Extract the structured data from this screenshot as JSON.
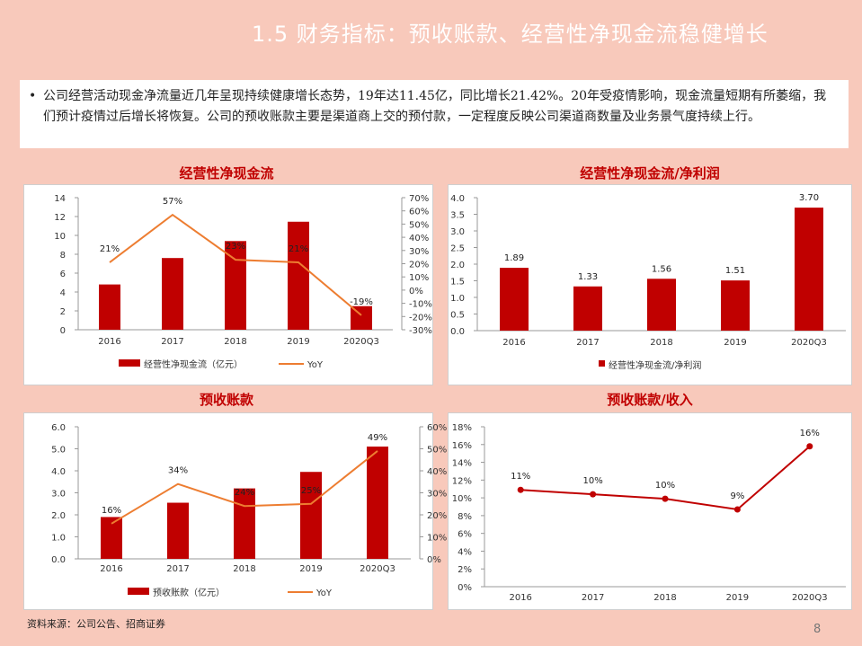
{
  "slide": {
    "title": "1.5 财务指标：预收账款、经营性净现金流稳健增长",
    "bullet_char": "•",
    "summary": "公司经营活动现金净流量近几年呈现持续健康增长态势，19年达11.45亿，同比增长21.42%。20年受疫情影响，现金流量短期有所萎缩，我们预计疫情过后增长将恢复。公司的预收账款主要是渠道商上交的预付款，一定程度反映公司渠道商数量及业务景气度持续上行。",
    "source": "资料来源：公司公告、招商证券",
    "page_number": "8"
  },
  "colors": {
    "bar": "#c00000",
    "line_yoy": "#ed7d31",
    "line_ratio": "#c00000",
    "title_red": "#c00000",
    "background": "#f8c9bb"
  },
  "chart_data": [
    {
      "type": "bar",
      "title": "经营性净现金流",
      "categories": [
        "2016",
        "2017",
        "2018",
        "2019",
        "2020Q3"
      ],
      "series": [
        {
          "name": "经营性净现金流（亿元）",
          "values": [
            4.8,
            7.6,
            9.4,
            11.45,
            2.5
          ],
          "axis": "left"
        },
        {
          "name": "YoY",
          "type": "line",
          "values": [
            0.21,
            0.57,
            0.23,
            0.21,
            -0.19
          ],
          "labels": [
            "21%",
            "57%",
            "23%",
            "21%",
            "-19%"
          ],
          "axis": "right"
        }
      ],
      "ylim": [
        0,
        14
      ],
      "yticks": [
        "0",
        "2",
        "4",
        "6",
        "8",
        "10",
        "12",
        "14"
      ],
      "y2lim": [
        -0.3,
        0.7
      ],
      "y2ticks": [
        "-30%",
        "-20%",
        "-10%",
        "0%",
        "10%",
        "20%",
        "30%",
        "40%",
        "50%",
        "60%",
        "70%"
      ],
      "legend": "bottom"
    },
    {
      "type": "bar",
      "title": "经营性净现金流/净利润",
      "categories": [
        "2016",
        "2017",
        "2018",
        "2019",
        "2020Q3"
      ],
      "series": [
        {
          "name": "经营性净现金流/净利润",
          "values": [
            1.89,
            1.33,
            1.56,
            1.51,
            3.7
          ],
          "labels": [
            "1.89",
            "1.33",
            "1.56",
            "1.51",
            "3.70"
          ]
        }
      ],
      "ylim": [
        0,
        4
      ],
      "yticks": [
        "0.0",
        "0.5",
        "1.0",
        "1.5",
        "2.0",
        "2.5",
        "3.0",
        "3.5",
        "4.0"
      ],
      "legend": "bottom"
    },
    {
      "type": "bar",
      "title": "预收账款",
      "categories": [
        "2016",
        "2017",
        "2018",
        "2019",
        "2020Q3"
      ],
      "series": [
        {
          "name": "预收账款（亿元）",
          "values": [
            1.9,
            2.55,
            3.2,
            3.95,
            5.1
          ],
          "axis": "left"
        },
        {
          "name": "YoY",
          "type": "line",
          "values": [
            0.16,
            0.34,
            0.24,
            0.25,
            0.49
          ],
          "labels": [
            "16%",
            "34%",
            "24%",
            "25%",
            "49%"
          ],
          "axis": "right"
        }
      ],
      "ylim": [
        0,
        6
      ],
      "yticks": [
        "0.0",
        "1.0",
        "2.0",
        "3.0",
        "4.0",
        "5.0",
        "6.0"
      ],
      "y2lim": [
        0,
        0.6
      ],
      "y2ticks": [
        "0%",
        "10%",
        "20%",
        "30%",
        "40%",
        "50%",
        "60%"
      ],
      "legend": "bottom"
    },
    {
      "type": "line",
      "title": "预收账款/收入",
      "categories": [
        "2016",
        "2017",
        "2018",
        "2019",
        "2020Q3"
      ],
      "series": [
        {
          "values": [
            0.11,
            0.1,
            0.1,
            0.09,
            0.16
          ],
          "labels": [
            "11%",
            "10%",
            "10%",
            "9%",
            "16%"
          ],
          "plotted": [
            0.109,
            0.104,
            0.099,
            0.087,
            0.158
          ]
        }
      ],
      "ylim": [
        0,
        0.18
      ],
      "yticks": [
        "0%",
        "2%",
        "4%",
        "6%",
        "8%",
        "10%",
        "12%",
        "14%",
        "16%",
        "18%"
      ],
      "legend": "none"
    }
  ]
}
